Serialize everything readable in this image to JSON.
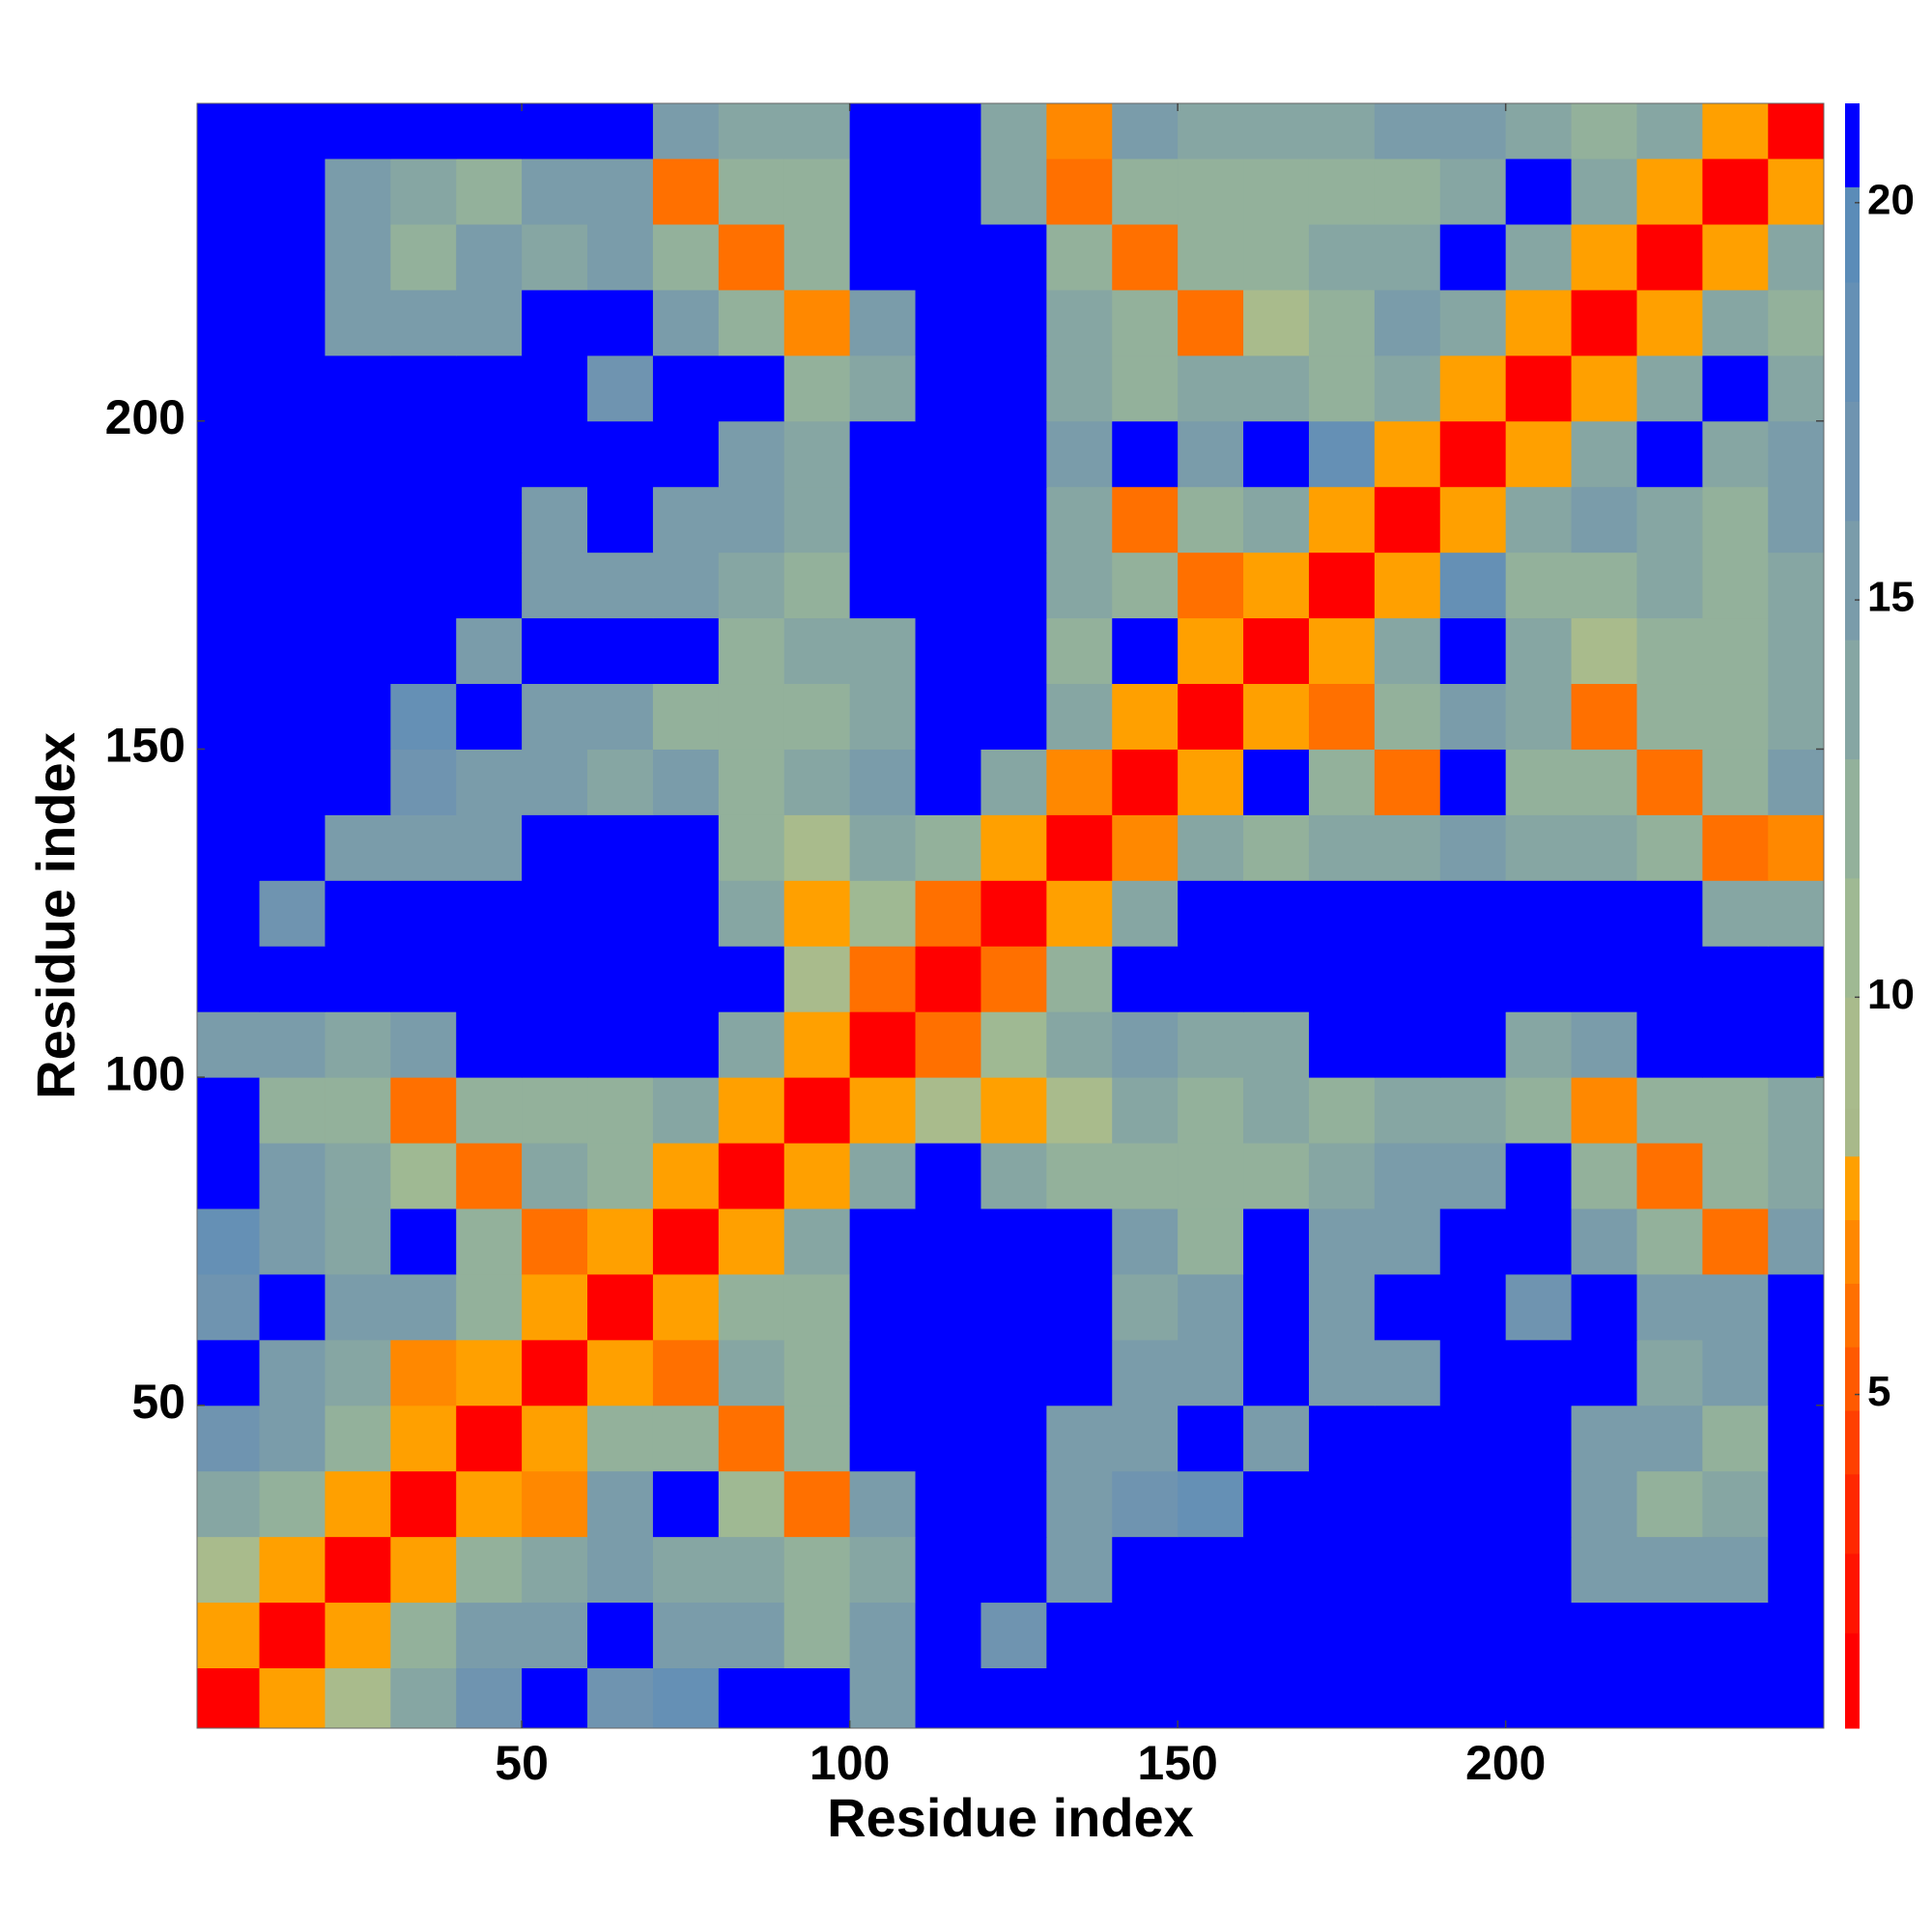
{
  "chart_data": {
    "type": "heatmap",
    "x_label": "Residue index",
    "y_label": "Residue index",
    "xlim": [
      0.5,
      248.5
    ],
    "ylim": [
      0.8,
      248.4
    ],
    "xticks": [
      50,
      100,
      150,
      200
    ],
    "yticks": [
      50,
      100,
      150,
      200
    ],
    "x": [
      5,
      15,
      25,
      35,
      45,
      55,
      65,
      75,
      85,
      95,
      105,
      115,
      125,
      135,
      145,
      155,
      165,
      175,
      185,
      195,
      205,
      215,
      225,
      235,
      245
    ],
    "y": [
      5,
      15,
      25,
      35,
      45,
      55,
      65,
      75,
      85,
      95,
      105,
      115,
      125,
      135,
      145,
      155,
      165,
      175,
      185,
      195,
      205,
      215,
      225,
      235,
      245
    ],
    "z": [
      [
        2,
        8,
        10,
        14,
        17,
        21,
        17,
        18,
        21,
        21,
        16,
        21,
        21,
        21,
        21,
        21,
        21,
        21,
        21,
        21,
        21,
        21,
        21,
        21,
        21
      ],
      [
        8,
        2,
        8,
        12,
        15,
        16,
        21,
        16,
        16,
        13,
        15,
        21,
        17,
        21,
        21,
        21,
        21,
        21,
        21,
        21,
        21,
        21,
        21,
        21,
        21
      ],
      [
        10,
        8,
        2,
        8,
        13,
        14,
        15,
        14,
        14,
        12,
        14,
        21,
        21,
        16,
        21,
        21,
        21,
        21,
        21,
        21,
        21,
        16,
        16,
        15,
        21
      ],
      [
        14,
        12,
        8,
        2,
        8,
        7,
        16,
        21,
        11,
        6,
        16,
        21,
        21,
        15,
        17,
        18,
        21,
        21,
        21,
        21,
        21,
        15,
        13,
        14,
        21
      ],
      [
        17,
        15,
        13,
        8,
        2,
        8,
        12,
        12,
        6,
        12,
        21,
        21,
        21,
        15,
        15,
        21,
        16,
        21,
        21,
        21,
        21,
        15,
        15,
        13,
        21
      ],
      [
        21,
        16,
        14,
        7,
        8,
        2,
        8,
        6,
        14,
        13,
        21,
        21,
        21,
        21,
        15,
        15,
        21,
        15,
        15,
        21,
        21,
        21,
        14,
        15,
        21
      ],
      [
        17,
        21,
        15,
        16,
        12,
        8,
        2,
        8,
        12,
        13,
        21,
        21,
        21,
        21,
        14,
        15,
        21,
        16,
        21,
        21,
        17,
        21,
        15,
        16,
        21
      ],
      [
        18,
        16,
        14,
        21,
        12,
        6,
        8,
        2,
        8,
        14,
        21,
        21,
        21,
        21,
        15,
        13,
        21,
        15,
        15,
        21,
        21,
        15,
        12,
        6,
        15
      ],
      [
        21,
        16,
        14,
        11,
        6,
        14,
        12,
        8,
        2,
        8,
        14,
        21,
        14,
        12,
        13,
        13,
        12,
        14,
        15,
        15,
        21,
        12,
        6,
        13,
        14
      ],
      [
        21,
        13,
        12,
        6,
        12,
        13,
        13,
        14,
        8,
        2,
        8,
        10,
        8,
        9,
        14,
        13,
        14,
        13,
        14,
        14,
        13,
        7,
        12,
        13,
        14
      ],
      [
        16,
        15,
        14,
        16,
        21,
        21,
        21,
        21,
        14,
        8,
        2,
        6,
        11,
        14,
        15,
        14,
        14,
        21,
        21,
        21,
        14,
        16,
        21,
        21,
        21
      ],
      [
        21,
        21,
        21,
        21,
        21,
        21,
        21,
        21,
        21,
        10,
        6,
        2,
        6,
        13,
        21,
        21,
        21,
        21,
        21,
        21,
        21,
        21,
        21,
        21,
        21
      ],
      [
        21,
        17,
        21,
        21,
        21,
        21,
        21,
        21,
        14,
        8,
        11,
        6,
        2,
        8,
        14,
        21,
        21,
        21,
        21,
        21,
        21,
        21,
        21,
        14,
        14
      ],
      [
        21,
        21,
        16,
        15,
        15,
        21,
        21,
        21,
        12,
        9,
        14,
        13,
        8,
        2,
        7,
        14,
        12,
        14,
        14,
        15,
        14,
        14,
        12,
        6,
        7
      ],
      [
        21,
        21,
        21,
        17,
        15,
        15,
        14,
        15,
        13,
        14,
        15,
        21,
        14,
        7,
        2,
        8,
        21,
        12,
        6,
        21,
        13,
        13,
        6,
        12,
        15
      ],
      [
        21,
        21,
        21,
        18,
        21,
        15,
        15,
        13,
        13,
        13,
        14,
        21,
        21,
        14,
        8,
        2,
        8,
        6,
        12,
        15,
        14,
        6,
        13,
        13,
        14
      ],
      [
        21,
        21,
        21,
        21,
        16,
        21,
        21,
        21,
        12,
        14,
        14,
        21,
        21,
        12,
        21,
        8,
        2,
        8,
        14,
        21,
        14,
        10,
        13,
        12,
        14
      ],
      [
        21,
        21,
        21,
        21,
        21,
        15,
        16,
        15,
        14,
        13,
        21,
        21,
        21,
        14,
        12,
        6,
        8,
        2,
        8,
        18,
        13,
        13,
        14,
        13,
        14
      ],
      [
        21,
        21,
        21,
        21,
        21,
        15,
        21,
        15,
        15,
        14,
        21,
        21,
        21,
        14,
        6,
        12,
        14,
        8,
        2,
        8,
        14,
        15,
        14,
        12,
        15
      ],
      [
        21,
        21,
        21,
        21,
        21,
        21,
        21,
        21,
        15,
        14,
        21,
        21,
        21,
        15,
        21,
        15,
        21,
        18,
        8,
        2,
        8,
        14,
        21,
        14,
        16
      ],
      [
        21,
        21,
        21,
        21,
        21,
        21,
        17,
        21,
        21,
        13,
        14,
        21,
        21,
        14,
        13,
        14,
        14,
        13,
        14,
        8,
        2,
        8,
        14,
        21,
        14
      ],
      [
        21,
        21,
        16,
        15,
        15,
        21,
        21,
        15,
        12,
        7,
        16,
        21,
        21,
        14,
        13,
        6,
        10,
        13,
        15,
        14,
        8,
        2,
        8,
        14,
        13
      ],
      [
        21,
        21,
        16,
        13,
        15,
        14,
        15,
        12,
        6,
        12,
        21,
        21,
        21,
        12,
        6,
        13,
        13,
        14,
        14,
        21,
        14,
        8,
        2,
        8,
        14
      ],
      [
        21,
        21,
        15,
        14,
        13,
        15,
        16,
        6,
        13,
        13,
        21,
        21,
        14,
        6,
        12,
        13,
        12,
        13,
        12,
        14,
        21,
        14,
        8,
        2,
        8
      ],
      [
        21,
        21,
        21,
        21,
        21,
        21,
        21,
        15,
        14,
        14,
        21,
        21,
        14,
        7,
        15,
        14,
        14,
        14,
        15,
        16,
        14,
        13,
        14,
        8,
        2
      ]
    ],
    "colorbar": {
      "zlim": [
        0.8,
        21.25
      ],
      "ticks": [
        5,
        10,
        15,
        20
      ],
      "bounds": [
        0.8,
        2.0,
        3.0,
        4.0,
        4.8,
        5.6,
        6.4,
        7.2,
        8.0,
        8.6,
        10,
        11.5,
        13,
        14.5,
        16,
        17.5,
        19,
        20.2,
        21.25
      ],
      "colors": [
        "#ff0000",
        "#ff1400",
        "#ff2800",
        "#ff4000",
        "#ff5a00",
        "#ff7000",
        "#ff8800",
        "#ffa000",
        "#a8b98a",
        "#a9bb8c",
        "#9fb993",
        "#93b19b",
        "#86a6a3",
        "#7a9caa",
        "#6f94b0",
        "#6590b5",
        "#5b8cb8",
        "#0000ff"
      ]
    }
  }
}
